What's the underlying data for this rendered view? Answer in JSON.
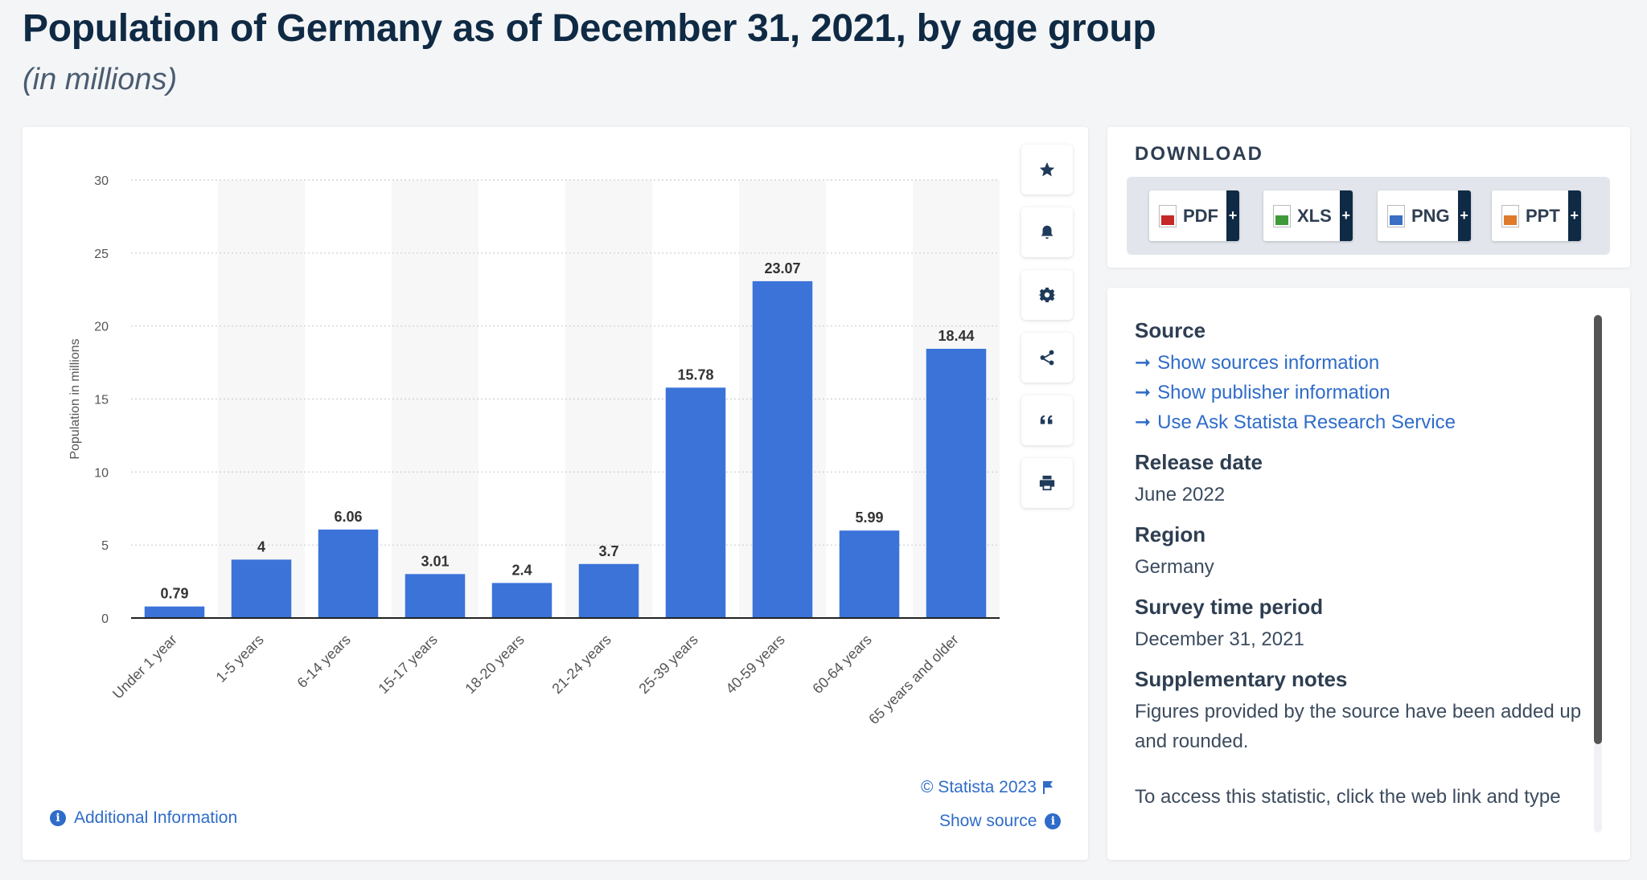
{
  "header": {
    "title": "Population of Germany as of December 31, 2021, by age group",
    "subtitle": "(in millions)"
  },
  "chart_data": {
    "type": "bar",
    "categories": [
      "Under 1 year",
      "1-5 years",
      "6-14 years",
      "15-17 years",
      "18-20 years",
      "21-24 years",
      "25-39 years",
      "40-59 years",
      "60-64 years",
      "65 years and older"
    ],
    "values": [
      0.79,
      4,
      6.06,
      3.01,
      2.4,
      3.7,
      15.78,
      23.07,
      5.99,
      18.44
    ],
    "value_labels": [
      "0.79",
      "4",
      "6.06",
      "3.01",
      "2.4",
      "3.7",
      "15.78",
      "23.07",
      "5.99",
      "18.44"
    ],
    "ylabel": "Population in millions",
    "ylim": [
      0,
      30
    ],
    "yticks": [
      0,
      5,
      10,
      15,
      20,
      25,
      30
    ],
    "grid": true,
    "bar_color": "#3b73d9"
  },
  "tools": [
    "star-icon",
    "bell-icon",
    "gear-icon",
    "share-icon",
    "quote-icon",
    "print-icon"
  ],
  "footer": {
    "credit": "© Statista 2023",
    "show_source": "Show source",
    "additional_info": "Additional Information"
  },
  "download": {
    "title": "DOWNLOAD",
    "buttons": [
      {
        "label": "PDF",
        "color": "#c62828"
      },
      {
        "label": "XLS",
        "color": "#3f9b3a"
      },
      {
        "label": "PNG",
        "color": "#3a6fc4"
      },
      {
        "label": "PPT",
        "color": "#e07a2a"
      }
    ],
    "plus": "+"
  },
  "info": {
    "source_label": "Source",
    "links": [
      "Show sources information",
      "Show publisher information",
      "Use Ask Statista Research Service"
    ],
    "release_label": "Release date",
    "release_value": "June 2022",
    "region_label": "Region",
    "region_value": "Germany",
    "survey_label": "Survey time period",
    "survey_value": "December 31, 2021",
    "notes_label": "Supplementary notes",
    "notes_value": "Figures provided by the source have been added up and rounded.",
    "access_text": "To access this statistic, click the web link and type"
  }
}
